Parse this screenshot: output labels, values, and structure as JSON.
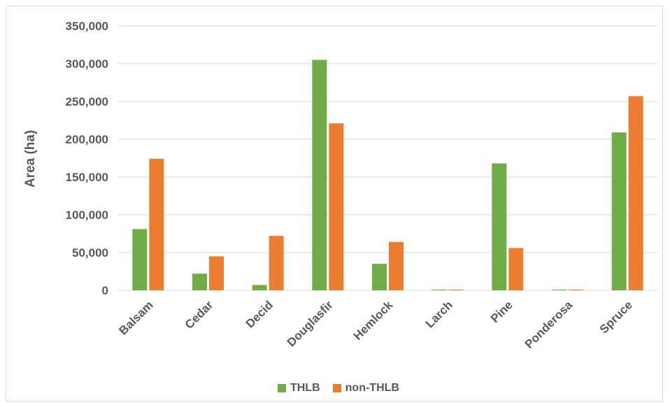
{
  "chart_data": {
    "type": "bar",
    "title": "",
    "xlabel": "",
    "ylabel": "Area (ha)",
    "ylim": [
      0,
      350000
    ],
    "yticks": [
      0,
      50000,
      100000,
      150000,
      200000,
      250000,
      300000,
      350000
    ],
    "ytick_labels": [
      "0",
      "50,000",
      "100,000",
      "150,000",
      "200,000",
      "250,000",
      "300,000",
      "350,000"
    ],
    "grid": true,
    "legend_position": "bottom",
    "categories": [
      "Balsam",
      "Cedar",
      "Decid",
      "Douglasfir",
      "Hemlock",
      "Larch",
      "Pine",
      "Ponderosa",
      "Spruce"
    ],
    "series": [
      {
        "name": "THLB",
        "color": "#70ad47",
        "values": [
          81000,
          22000,
          7000,
          305000,
          35000,
          800,
          168000,
          800,
          209000
        ]
      },
      {
        "name": "non-THLB",
        "color": "#ed7d31",
        "values": [
          174000,
          45000,
          72000,
          221000,
          64000,
          800,
          56000,
          800,
          257000
        ]
      }
    ]
  }
}
